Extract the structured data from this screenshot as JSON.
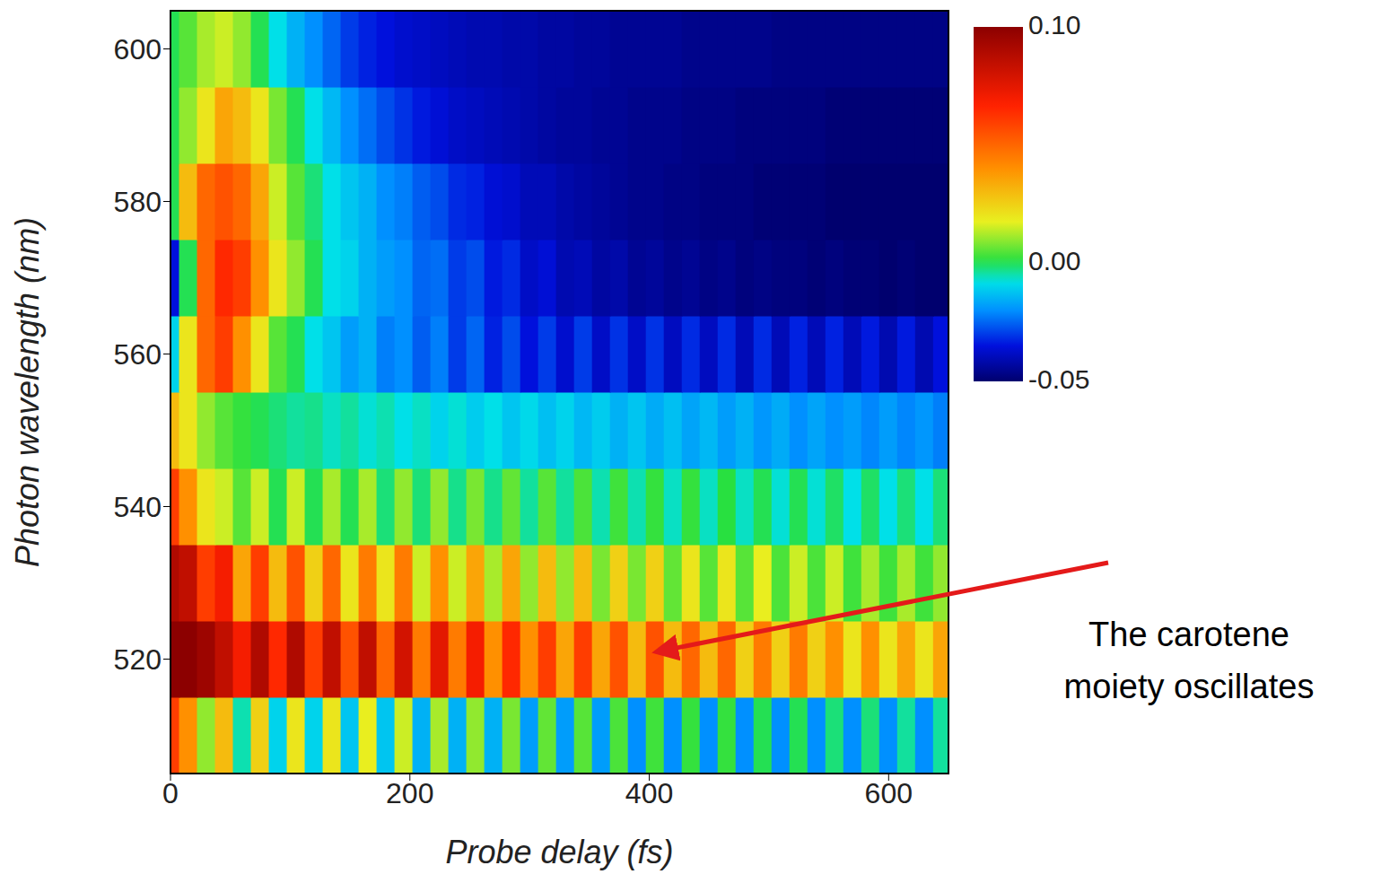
{
  "chart_data": {
    "type": "heatmap",
    "x_label": "Probe delay (fs)",
    "y_label": "Photon wavelength (nm)",
    "xlim": [
      0,
      650
    ],
    "xticks": [
      0,
      200,
      400,
      600
    ],
    "ylim": [
      505,
      605
    ],
    "yticks": [
      520,
      540,
      560,
      580,
      600
    ],
    "colorbar_lim": [
      -0.05,
      0.1
    ],
    "colorbar_ticks": [
      {
        "value": 0.1,
        "label": "0.10"
      },
      {
        "value": 0,
        "label": "0.00"
      },
      -0.05
    ],
    "x": [
      0,
      15,
      30,
      45,
      60,
      75,
      90,
      105,
      120,
      135,
      150,
      165,
      180,
      195,
      210,
      225,
      240,
      255,
      270,
      285,
      300,
      315,
      330,
      345,
      360,
      375,
      390,
      405,
      420,
      435,
      450,
      465,
      480,
      495,
      510,
      525,
      540,
      555,
      570,
      585,
      600,
      615,
      630,
      645
    ],
    "y": [
      510,
      520,
      530,
      540,
      550,
      560,
      570,
      580,
      590,
      600
    ],
    "values": [
      [
        0.06,
        0.04,
        0.01,
        0.03,
        -0.005,
        0.025,
        -0.01,
        0.02,
        -0.01,
        0.02,
        -0.012,
        0.018,
        -0.012,
        0.015,
        -0.015,
        0.012,
        -0.015,
        0.01,
        -0.015,
        0.008,
        -0.018,
        0.006,
        -0.018,
        0.005,
        -0.018,
        0.004,
        -0.02,
        0.003,
        -0.02,
        0.002,
        -0.02,
        0.002,
        -0.02,
        0,
        -0.02,
        0,
        -0.02,
        -0.002,
        -0.02,
        -0.002,
        -0.02,
        -0.004,
        -0.02,
        -0.004
      ],
      [
        0.1,
        0.1,
        0.095,
        0.085,
        0.07,
        0.09,
        0.065,
        0.09,
        0.06,
        0.085,
        0.055,
        0.085,
        0.05,
        0.08,
        0.045,
        0.075,
        0.045,
        0.07,
        0.04,
        0.065,
        0.04,
        0.06,
        0.035,
        0.06,
        0.035,
        0.055,
        0.03,
        0.055,
        0.03,
        0.05,
        0.03,
        0.05,
        0.025,
        0.045,
        0.025,
        0.045,
        0.025,
        0.04,
        0.02,
        0.04,
        0.02,
        0.035,
        0.02,
        0.035
      ],
      [
        0.09,
        0.085,
        0.06,
        0.07,
        0.035,
        0.06,
        0.03,
        0.055,
        0.025,
        0.05,
        0.02,
        0.045,
        0.02,
        0.045,
        0.015,
        0.04,
        0.015,
        0.035,
        0.012,
        0.035,
        0.01,
        0.03,
        0.01,
        0.03,
        0.008,
        0.025,
        0.008,
        0.025,
        0.006,
        0.02,
        0.005,
        0.02,
        0.005,
        0.018,
        0.004,
        0.015,
        0.004,
        0.015,
        0.003,
        0.012,
        0.003,
        0.012,
        0.003,
        0.01
      ],
      [
        0.06,
        0.04,
        0.02,
        0.015,
        0.005,
        0.015,
        0,
        0.015,
        0,
        0.012,
        0,
        0.012,
        -0.002,
        0.01,
        -0.002,
        0.01,
        -0.003,
        0.008,
        -0.003,
        0.006,
        -0.004,
        0.005,
        -0.004,
        0.004,
        -0.005,
        0.003,
        -0.005,
        0.002,
        -0.006,
        0.002,
        -0.006,
        0.001,
        -0.006,
        0,
        -0.007,
        0,
        -0.007,
        -0.001,
        -0.008,
        -0.001,
        -0.008,
        -0.002,
        -0.008,
        -0.002
      ],
      [
        0.03,
        0.02,
        0.01,
        0.005,
        0.002,
        0,
        -0.002,
        -0.004,
        -0.003,
        -0.006,
        -0.004,
        -0.007,
        -0.005,
        -0.008,
        -0.006,
        -0.01,
        -0.007,
        -0.011,
        -0.008,
        -0.012,
        -0.009,
        -0.013,
        -0.01,
        -0.014,
        -0.011,
        -0.015,
        -0.012,
        -0.016,
        -0.013,
        -0.017,
        -0.014,
        -0.018,
        -0.015,
        -0.019,
        -0.016,
        -0.02,
        -0.017,
        -0.02,
        -0.018,
        -0.021,
        -0.018,
        -0.021,
        -0.019,
        -0.022
      ],
      [
        -0.01,
        0.02,
        0.05,
        0.06,
        0.04,
        0.02,
        0.005,
        0,
        -0.008,
        -0.012,
        -0.018,
        -0.015,
        -0.022,
        -0.02,
        -0.026,
        -0.022,
        -0.03,
        -0.025,
        -0.033,
        -0.028,
        -0.035,
        -0.03,
        -0.037,
        -0.03,
        -0.038,
        -0.031,
        -0.038,
        -0.031,
        -0.039,
        -0.032,
        -0.039,
        -0.032,
        -0.04,
        -0.032,
        -0.04,
        -0.033,
        -0.04,
        -0.033,
        -0.04,
        -0.034,
        -0.041,
        -0.034,
        -0.041,
        -0.035
      ],
      [
        -0.035,
        0,
        0.05,
        0.065,
        0.06,
        0.04,
        0.02,
        0.01,
        0,
        -0.008,
        -0.01,
        -0.015,
        -0.018,
        -0.02,
        -0.025,
        -0.024,
        -0.03,
        -0.028,
        -0.034,
        -0.032,
        -0.038,
        -0.036,
        -0.041,
        -0.04,
        -0.043,
        -0.042,
        -0.045,
        -0.044,
        -0.046,
        -0.045,
        -0.047,
        -0.046,
        -0.048,
        -0.047,
        -0.048,
        -0.048,
        -0.049,
        -0.048,
        -0.049,
        -0.049,
        -0.05,
        -0.049,
        -0.05,
        -0.05
      ],
      [
        0,
        0.03,
        0.05,
        0.055,
        0.05,
        0.035,
        0.015,
        0.005,
        -0.002,
        -0.008,
        -0.012,
        -0.015,
        -0.02,
        -0.022,
        -0.026,
        -0.028,
        -0.032,
        -0.033,
        -0.036,
        -0.037,
        -0.04,
        -0.04,
        -0.042,
        -0.043,
        -0.044,
        -0.045,
        -0.046,
        -0.046,
        -0.047,
        -0.047,
        -0.048,
        -0.048,
        -0.048,
        -0.049,
        -0.049,
        -0.049,
        -0.049,
        -0.05,
        -0.05,
        -0.05,
        -0.05,
        -0.05,
        -0.05,
        -0.05
      ],
      [
        0,
        0.01,
        0.02,
        0.035,
        0.03,
        0.02,
        0.008,
        0,
        -0.008,
        -0.014,
        -0.02,
        -0.024,
        -0.028,
        -0.031,
        -0.034,
        -0.036,
        -0.038,
        -0.039,
        -0.04,
        -0.041,
        -0.042,
        -0.043,
        -0.044,
        -0.044,
        -0.045,
        -0.045,
        -0.046,
        -0.046,
        -0.046,
        -0.047,
        -0.047,
        -0.047,
        -0.048,
        -0.048,
        -0.048,
        -0.048,
        -0.048,
        -0.049,
        -0.049,
        -0.049,
        -0.049,
        -0.049,
        -0.049,
        -0.049
      ],
      [
        0,
        0.005,
        0.012,
        0.015,
        0.01,
        0,
        -0.008,
        -0.015,
        -0.02,
        -0.025,
        -0.03,
        -0.033,
        -0.035,
        -0.037,
        -0.038,
        -0.039,
        -0.04,
        -0.041,
        -0.041,
        -0.042,
        -0.042,
        -0.043,
        -0.043,
        -0.044,
        -0.044,
        -0.045,
        -0.045,
        -0.045,
        -0.045,
        -0.046,
        -0.046,
        -0.046,
        -0.046,
        -0.046,
        -0.047,
        -0.047,
        -0.047,
        -0.047,
        -0.047,
        -0.047,
        -0.047,
        -0.047,
        -0.047,
        -0.047
      ]
    ],
    "annotations": [
      {
        "text": "The carotene moiety oscillates",
        "x": 400,
        "y": 521
      }
    ]
  }
}
